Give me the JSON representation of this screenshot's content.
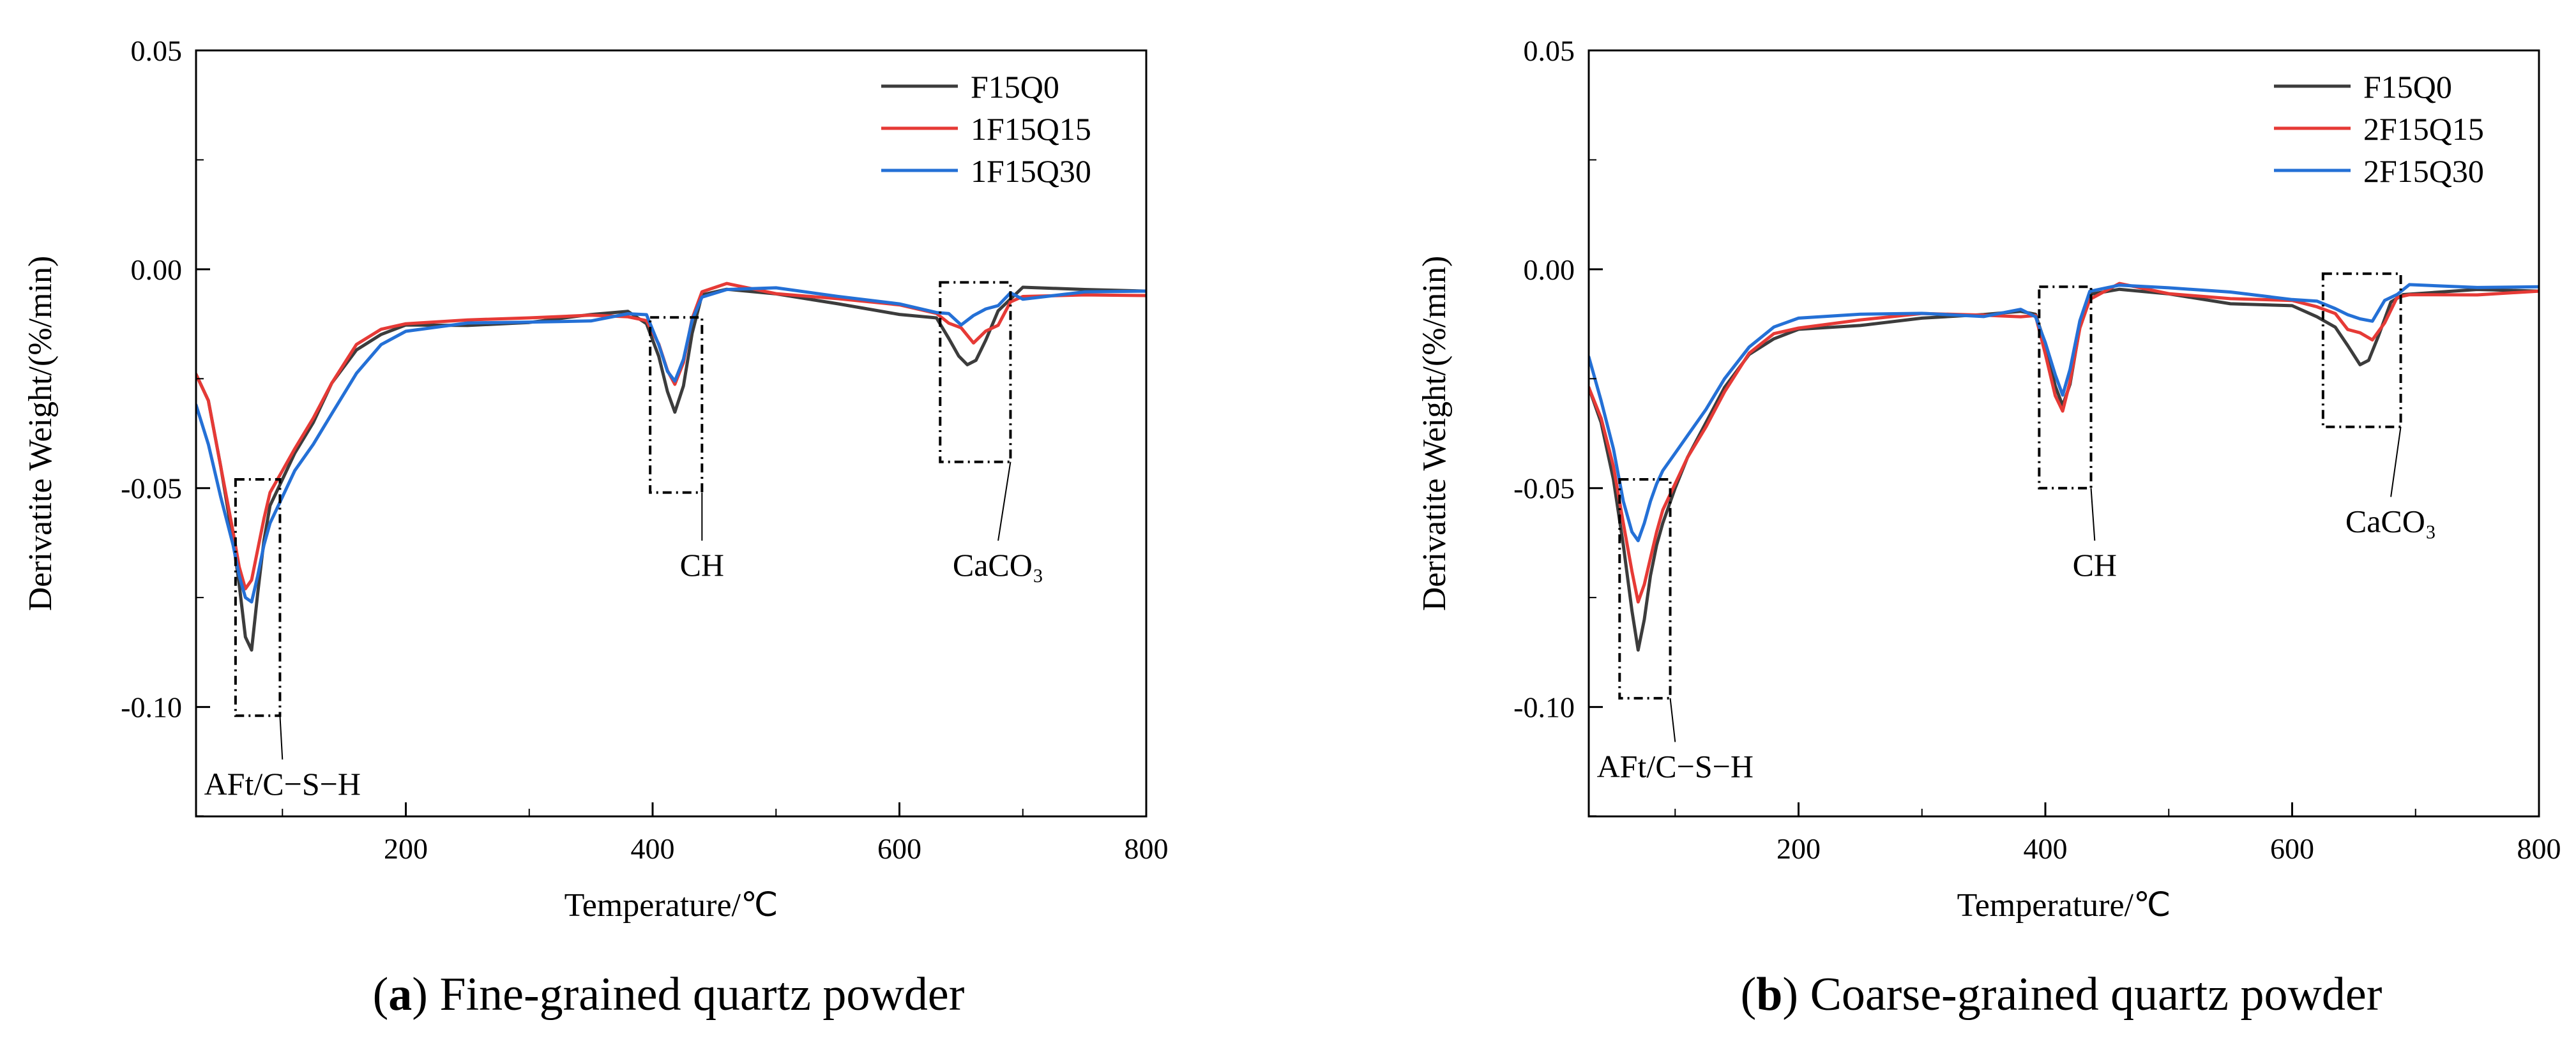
{
  "chart_data": [
    {
      "panel": "a",
      "type": "line",
      "caption_letter": "a",
      "caption_text": "Fine-grained quartz powder",
      "xlabel": "Temperature/℃",
      "ylabel": "Derivatite Weight/(%/min)",
      "xlim": [
        30,
        800
      ],
      "ylim": [
        -0.125,
        0.05
      ],
      "xticks": [
        200,
        400,
        600,
        800
      ],
      "xtick_labels": [
        "200",
        "400",
        "600",
        "800"
      ],
      "yticks": [
        0.05,
        0.0,
        -0.05,
        -0.1
      ],
      "ytick_labels": [
        "0.05",
        "0.00",
        "-0.05",
        "-0.10"
      ],
      "legend_position": "top-right",
      "series": [
        {
          "name": "F15Q0",
          "color": "#3c3c3c",
          "x": [
            30,
            40,
            50,
            60,
            65,
            70,
            75,
            80,
            85,
            90,
            100,
            110,
            125,
            140,
            160,
            180,
            200,
            250,
            300,
            350,
            380,
            395,
            405,
            412,
            418,
            425,
            432,
            440,
            460,
            500,
            550,
            600,
            630,
            640,
            648,
            655,
            662,
            670,
            680,
            700,
            750,
            800
          ],
          "y": [
            -0.024,
            -0.03,
            -0.045,
            -0.062,
            -0.072,
            -0.084,
            -0.087,
            -0.074,
            -0.062,
            -0.054,
            -0.048,
            -0.042,
            -0.035,
            -0.026,
            -0.018,
            -0.014,
            -0.012,
            -0.012,
            -0.012,
            -0.011,
            -0.01,
            -0.012,
            -0.02,
            -0.028,
            -0.032,
            -0.026,
            -0.014,
            -0.006,
            -0.004,
            -0.005,
            -0.007,
            -0.01,
            -0.012,
            -0.015,
            -0.019,
            -0.021,
            -0.02,
            -0.016,
            -0.01,
            -0.005,
            -0.005,
            -0.005
          ]
        },
        {
          "name": "1F15Q15",
          "color": "#e63a36",
          "x": [
            30,
            40,
            50,
            60,
            65,
            70,
            75,
            80,
            85,
            90,
            100,
            110,
            125,
            140,
            160,
            180,
            200,
            250,
            300,
            350,
            380,
            395,
            405,
            412,
            418,
            425,
            432,
            440,
            460,
            500,
            550,
            600,
            630,
            640,
            650,
            660,
            670,
            680,
            690,
            700,
            750,
            800
          ],
          "y": [
            -0.024,
            -0.03,
            -0.045,
            -0.06,
            -0.068,
            -0.073,
            -0.071,
            -0.064,
            -0.057,
            -0.051,
            -0.046,
            -0.041,
            -0.034,
            -0.026,
            -0.018,
            -0.014,
            -0.012,
            -0.012,
            -0.012,
            -0.011,
            -0.01,
            -0.011,
            -0.018,
            -0.024,
            -0.027,
            -0.022,
            -0.012,
            -0.006,
            -0.004,
            -0.005,
            -0.007,
            -0.009,
            -0.01,
            -0.012,
            -0.014,
            -0.016,
            -0.015,
            -0.012,
            -0.008,
            -0.006,
            -0.005,
            -0.006
          ]
        },
        {
          "name": "1F15Q30",
          "color": "#2470d6",
          "x": [
            30,
            40,
            50,
            60,
            65,
            70,
            75,
            80,
            85,
            90,
            100,
            110,
            125,
            140,
            160,
            180,
            200,
            250,
            300,
            350,
            380,
            395,
            405,
            412,
            418,
            425,
            432,
            440,
            460,
            500,
            550,
            600,
            630,
            640,
            650,
            660,
            670,
            680,
            690,
            700,
            750,
            800
          ],
          "y": [
            -0.031,
            -0.04,
            -0.052,
            -0.063,
            -0.07,
            -0.075,
            -0.076,
            -0.07,
            -0.063,
            -0.058,
            -0.052,
            -0.046,
            -0.04,
            -0.033,
            -0.024,
            -0.018,
            -0.015,
            -0.013,
            -0.012,
            -0.011,
            -0.01,
            -0.011,
            -0.017,
            -0.023,
            -0.026,
            -0.021,
            -0.012,
            -0.006,
            -0.005,
            -0.005,
            -0.007,
            -0.008,
            -0.009,
            -0.011,
            -0.012,
            -0.011,
            -0.009,
            -0.008,
            -0.006,
            -0.006,
            -0.005,
            -0.005
          ]
        }
      ],
      "annotations": [
        {
          "text": "AFt/C−S−H",
          "x_range": [
            62,
            98
          ],
          "y_range": [
            -0.102,
            -0.048
          ],
          "label_x": 100,
          "label_y": -0.112
        },
        {
          "text": "CH",
          "x_range": [
            398,
            440
          ],
          "y_range": [
            -0.051,
            -0.011
          ],
          "label_x": 440,
          "label_y": -0.062
        },
        {
          "text": "CaCO₃",
          "x_range": [
            633,
            690
          ],
          "y_range": [
            -0.044,
            -0.003
          ],
          "label_x": 680,
          "label_y": -0.062
        }
      ]
    },
    {
      "panel": "b",
      "type": "line",
      "caption_letter": "b",
      "caption_text": "Coarse-grained quartz powder",
      "xlabel": "Temperature/℃",
      "ylabel": "Derivatite Weight/(%/min)",
      "xlim": [
        30,
        800
      ],
      "ylim": [
        -0.125,
        0.05
      ],
      "xticks": [
        200,
        400,
        600,
        800
      ],
      "xtick_labels": [
        "200",
        "400",
        "600",
        "800"
      ],
      "yticks": [
        0.05,
        0.0,
        -0.05,
        -0.1
      ],
      "ytick_labels": [
        "0.05",
        "0.00",
        "-0.05",
        "-0.10"
      ],
      "legend_position": "top-right",
      "series": [
        {
          "name": "F15Q0",
          "color": "#3c3c3c",
          "x": [
            30,
            40,
            50,
            58,
            65,
            70,
            75,
            80,
            85,
            90,
            100,
            110,
            125,
            140,
            160,
            180,
            200,
            250,
            300,
            350,
            380,
            392,
            400,
            408,
            414,
            420,
            428,
            436,
            460,
            500,
            550,
            600,
            620,
            635,
            645,
            655,
            662,
            670,
            680,
            690,
            750,
            800
          ],
          "y": [
            -0.027,
            -0.035,
            -0.048,
            -0.063,
            -0.078,
            -0.087,
            -0.08,
            -0.07,
            -0.063,
            -0.058,
            -0.05,
            -0.043,
            -0.035,
            -0.027,
            -0.019,
            -0.015,
            -0.013,
            -0.012,
            -0.011,
            -0.011,
            -0.01,
            -0.011,
            -0.018,
            -0.027,
            -0.032,
            -0.027,
            -0.014,
            -0.006,
            -0.004,
            -0.005,
            -0.007,
            -0.008,
            -0.01,
            -0.013,
            -0.018,
            -0.021,
            -0.02,
            -0.015,
            -0.008,
            -0.005,
            -0.005,
            -0.005
          ]
        },
        {
          "name": "2F15Q15",
          "color": "#e63a36",
          "x": [
            30,
            40,
            50,
            58,
            65,
            70,
            75,
            80,
            85,
            90,
            100,
            110,
            125,
            140,
            160,
            180,
            200,
            250,
            300,
            350,
            380,
            392,
            400,
            408,
            414,
            420,
            428,
            436,
            460,
            500,
            550,
            600,
            620,
            635,
            645,
            655,
            665,
            675,
            685,
            695,
            750,
            800
          ],
          "y": [
            -0.027,
            -0.034,
            -0.045,
            -0.058,
            -0.069,
            -0.076,
            -0.072,
            -0.066,
            -0.06,
            -0.055,
            -0.049,
            -0.043,
            -0.036,
            -0.028,
            -0.02,
            -0.015,
            -0.013,
            -0.012,
            -0.011,
            -0.011,
            -0.01,
            -0.011,
            -0.019,
            -0.028,
            -0.032,
            -0.026,
            -0.013,
            -0.006,
            -0.004,
            -0.005,
            -0.007,
            -0.008,
            -0.009,
            -0.011,
            -0.013,
            -0.015,
            -0.016,
            -0.012,
            -0.007,
            -0.005,
            -0.005,
            -0.005
          ]
        },
        {
          "name": "2F15Q30",
          "color": "#2470d6",
          "x": [
            30,
            40,
            50,
            58,
            65,
            70,
            75,
            80,
            85,
            90,
            100,
            110,
            125,
            140,
            160,
            180,
            200,
            250,
            300,
            350,
            380,
            392,
            400,
            408,
            414,
            420,
            428,
            436,
            460,
            500,
            550,
            600,
            620,
            635,
            645,
            655,
            665,
            675,
            685,
            695,
            750,
            800
          ],
          "y": [
            -0.02,
            -0.03,
            -0.041,
            -0.053,
            -0.06,
            -0.062,
            -0.058,
            -0.053,
            -0.049,
            -0.046,
            -0.042,
            -0.038,
            -0.032,
            -0.025,
            -0.018,
            -0.014,
            -0.012,
            -0.011,
            -0.01,
            -0.01,
            -0.009,
            -0.01,
            -0.016,
            -0.024,
            -0.028,
            -0.022,
            -0.011,
            -0.005,
            -0.004,
            -0.005,
            -0.006,
            -0.007,
            -0.008,
            -0.009,
            -0.01,
            -0.012,
            -0.011,
            -0.008,
            -0.005,
            -0.004,
            -0.004,
            -0.004
          ]
        }
      ],
      "annotations": [
        {
          "text": "AFt/C−S−H",
          "x_range": [
            55,
            96
          ],
          "y_range": [
            -0.098,
            -0.048
          ],
          "label_x": 100,
          "label_y": -0.108
        },
        {
          "text": "CH",
          "x_range": [
            395,
            437
          ],
          "y_range": [
            -0.05,
            -0.004
          ],
          "label_x": 440,
          "label_y": -0.062
        },
        {
          "text": "CaCO₃",
          "x_range": [
            625,
            688
          ],
          "y_range": [
            -0.036,
            -0.001
          ],
          "label_x": 680,
          "label_y": -0.052
        }
      ]
    }
  ]
}
